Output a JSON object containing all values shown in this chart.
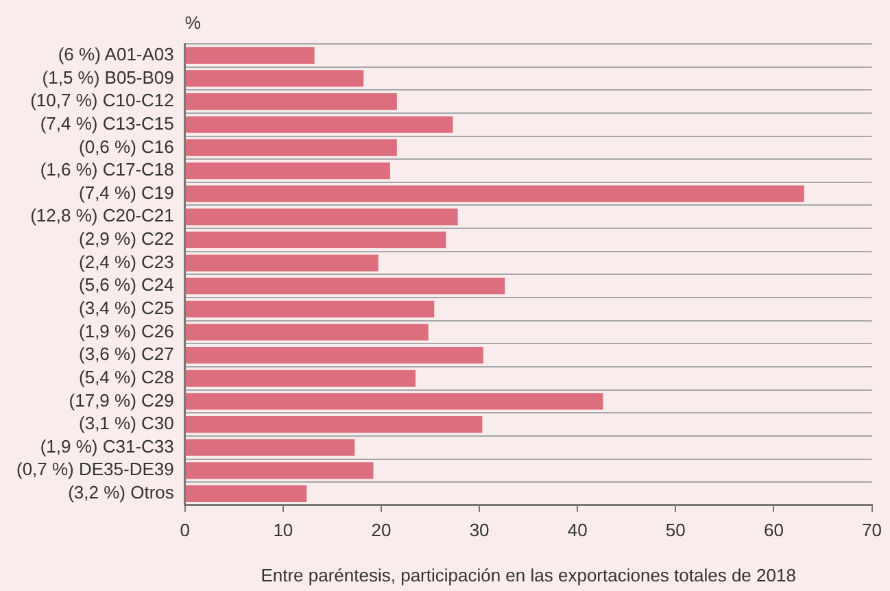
{
  "chart_data": {
    "type": "bar",
    "orientation": "horizontal",
    "xlabel": "%",
    "categories": [
      "(6 %) A01-A03",
      "(1,5 %) B05-B09",
      "(10,7 %) C10-C12",
      "(7,4 %) C13-C15",
      "(0,6 %) C16",
      "(1,6 %) C17-C18",
      "(7,4 %) C19",
      "(12,8 %) C20-C21",
      "(2,9 %) C22",
      "(2,4 %) C23",
      "(5,6 %) C24",
      "(3,4 %) C25",
      "(1,9 %) C26",
      "(3,6 %) C27",
      "(5,4 %) C28",
      "(17,9 %) C29",
      "(3,1 %) C30",
      "(1,9 %) C31-C33",
      "(0,7 %) DE35-DE39",
      "(3,2 %) Otros"
    ],
    "values": [
      13.2,
      18.2,
      21.6,
      27.3,
      21.6,
      20.9,
      63.1,
      27.8,
      26.6,
      19.7,
      32.6,
      25.4,
      24.8,
      30.4,
      23.5,
      42.6,
      30.3,
      17.3,
      19.2,
      12.4
    ],
    "color": "#dc6e7d",
    "xlim": [
      0,
      70
    ],
    "xticks": [
      0,
      10,
      20,
      30,
      40,
      50,
      60,
      70
    ],
    "grid": "y",
    "annotations": [
      "Entre paréntesis, participación en las exportaciones totales de 2018"
    ]
  }
}
